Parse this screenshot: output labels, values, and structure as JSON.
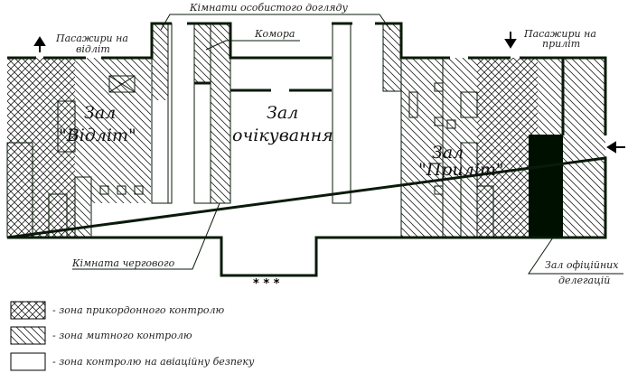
{
  "labels": {
    "special_rooms": "Кімнати особистого догляду",
    "storage": "Комора",
    "departing_passengers": [
      "Пасажири на",
      "відліт"
    ],
    "arriving_passengers": [
      "Пасажири на",
      "приліт"
    ],
    "departure_hall": [
      "Зал",
      "\"Відліт\""
    ],
    "waiting_hall": [
      "Зал",
      "очікування"
    ],
    "arrival_hall": [
      "Зал",
      "\"Приліт\""
    ],
    "duty_room": "Кімната чергового",
    "delegations_hall": [
      "Зал офіційних",
      "делегацій"
    ],
    "stars": "* * *"
  },
  "legend": [
    {
      "pattern": "crosshatch",
      "label": "- зона прикордонного контролю"
    },
    {
      "pattern": "hatch",
      "label": "- зона митного контролю"
    },
    {
      "pattern": "blank",
      "label": "- зона контролю на авіаційну безпеку"
    }
  ],
  "colors": {
    "line": "#0a1a0a",
    "fill_black": "#001000"
  }
}
